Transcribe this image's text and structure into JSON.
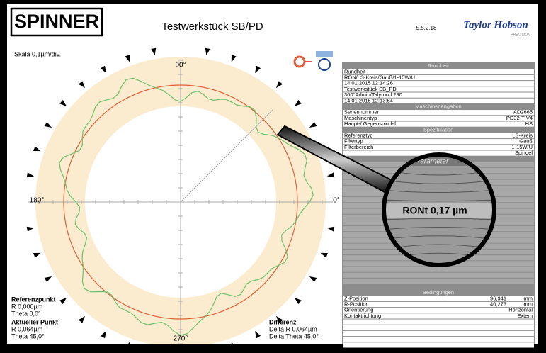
{
  "header": {
    "logo": "SPINNER",
    "title": "Testwerkstück SB/PD",
    "version": "5.5.2.18",
    "brand": "Taylor Hobson",
    "brand_sub": "PRECISION"
  },
  "plot": {
    "scale": "Skala 0,1µm/div.",
    "angles": {
      "top": "90°",
      "left": "180°",
      "right": "0°",
      "bottom": "270°"
    },
    "reference": {
      "title": "Referenzpunkt",
      "lines": [
        "R 0,000µm",
        "Theta 0,0°"
      ]
    },
    "actual": {
      "title": "Aktueller Punkt",
      "lines": [
        "R 0,064µm",
        "Theta 45,0°"
      ]
    },
    "difference": {
      "title": "Differenz",
      "lines": [
        "Delta R 0,064µm",
        "Delta Theta 45,0°"
      ]
    }
  },
  "panel": {
    "rundheit": {
      "title": "Rundheit",
      "lines": [
        "Rundheit",
        "RON/LS-Kreis/Gauß/1-15W/U",
        "14.01.2015 12:14:26",
        "Testwerkstück SB_PD",
        "360°Admin/Talyrond 290",
        "14.01.2015 12:13:54"
      ]
    },
    "maschine": {
      "title": "Maschinenangaben",
      "rows": [
        {
          "label": "Seriennummer",
          "value": "AD2665"
        },
        {
          "label": "Maschinentyp",
          "value": "PD32-T-V4"
        },
        {
          "label": "Haupt-/ Gegenspindel",
          "value": "HS"
        }
      ]
    },
    "spezifikation": {
      "title": "Spezifikation",
      "rows": [
        {
          "label": "Referenztyp",
          "value": "LS-Kreis"
        },
        {
          "label": "Filtertyp",
          "value": "Gauß"
        },
        {
          "label": "Filterbereich",
          "value": "1-15W/U"
        },
        {
          "value": "Spindel"
        }
      ]
    },
    "parameter": {
      "title": "Parameter",
      "result": "RONt 0,17 µm"
    },
    "bedingungen": {
      "title": "Bedingungen",
      "rows": [
        {
          "label": "Z-Position",
          "value": "96,941",
          "unit": "mm"
        },
        {
          "label": "R-Position",
          "value": "40,273",
          "unit": "mm"
        },
        {
          "label": "Orientierung",
          "unit": "Horizontal"
        },
        {
          "label": "Kontaktrichtung",
          "unit": "Extern"
        }
      ]
    }
  }
}
